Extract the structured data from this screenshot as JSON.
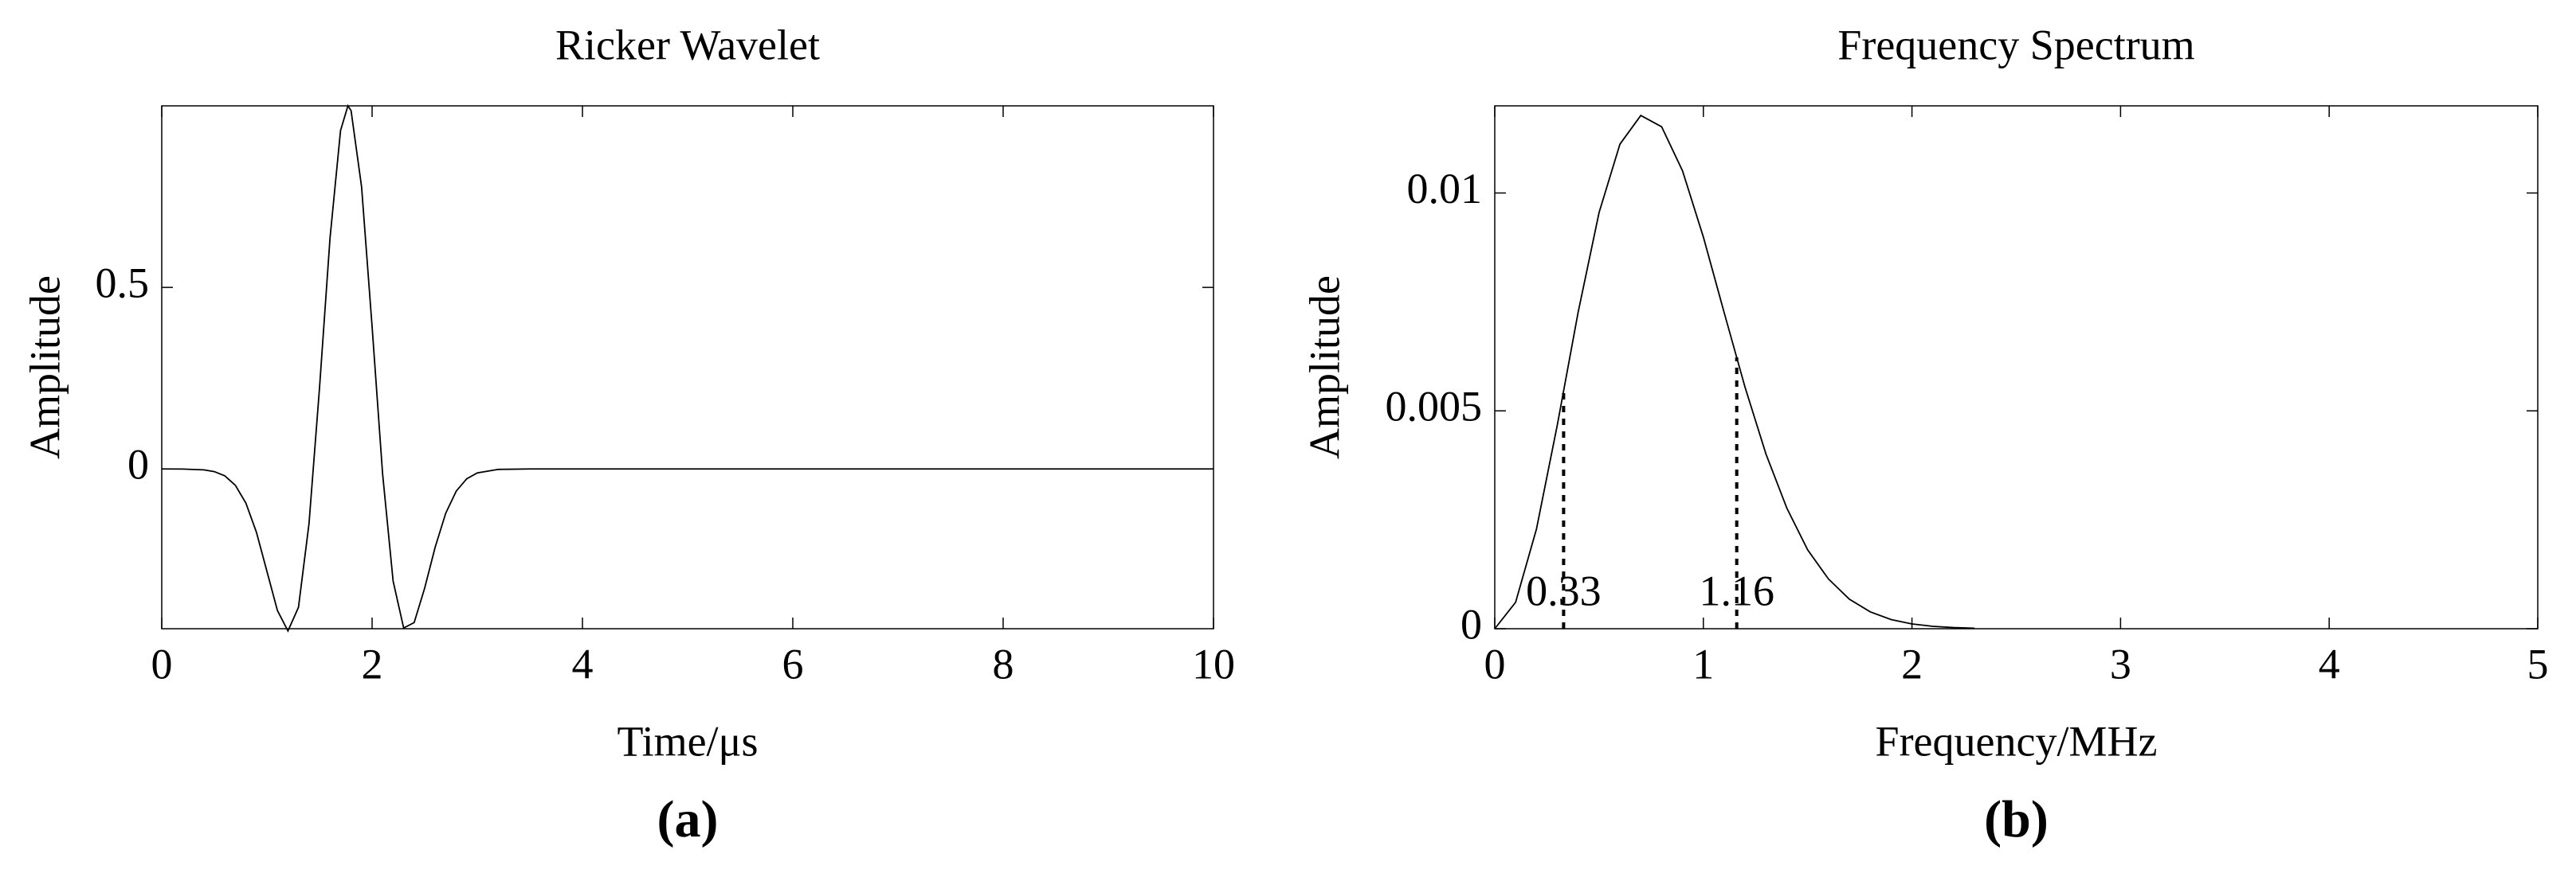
{
  "chart_data": [
    {
      "type": "line",
      "title": "Ricker Wavelet",
      "xlabel": "Time/μs",
      "ylabel": "Amplitude",
      "panel_label": "(a)",
      "x": [
        0,
        0.2,
        0.4,
        0.5,
        0.6,
        0.7,
        0.8,
        0.9,
        1.0,
        1.1,
        1.2,
        1.3,
        1.4,
        1.5,
        1.6,
        1.7,
        1.77,
        1.8,
        1.9,
        2.0,
        2.1,
        2.2,
        2.3,
        2.4,
        2.5,
        2.6,
        2.7,
        2.8,
        2.9,
        3.0,
        3.2,
        3.5,
        10
      ],
      "values": [
        0,
        -0.0002,
        -0.0025,
        -0.0073,
        -0.019,
        -0.045,
        -0.094,
        -0.174,
        -0.282,
        -0.39,
        -0.446,
        -0.381,
        -0.151,
        0.223,
        0.636,
        0.932,
        1,
        0.987,
        0.777,
        0.392,
        -0.014,
        -0.309,
        -0.438,
        -0.423,
        -0.328,
        -0.215,
        -0.122,
        -0.061,
        -0.027,
        -0.011,
        -0.0012,
        0,
        0
      ],
      "color": "#000000",
      "xlim": [
        0,
        10
      ],
      "ylim": [
        -0.44,
        1
      ],
      "xticks": [
        0,
        2,
        4,
        6,
        8,
        10
      ],
      "yticks": [
        0,
        0.5
      ]
    },
    {
      "type": "line",
      "title": "Frequency Spectrum",
      "xlabel": "Frequency/MHz",
      "ylabel": "Amplitude",
      "panel_label": "(b)",
      "x": [
        0,
        0.1,
        0.2,
        0.3,
        0.4,
        0.5,
        0.6,
        0.7,
        0.8,
        0.9,
        1.0,
        1.1,
        1.2,
        1.3,
        1.4,
        1.5,
        1.6,
        1.7,
        1.8,
        1.9,
        2.0,
        2.1,
        2.2,
        2.3
      ],
      "values": [
        0,
        0.000607,
        0.00229,
        0.00468,
        0.00727,
        0.00955,
        0.01112,
        0.01178,
        0.01152,
        0.01051,
        0.00899,
        0.00725,
        0.00554,
        0.00401,
        0.00277,
        0.00181,
        0.00114,
        0.000678,
        0.000387,
        0.000211,
        0.00011,
        5.5e-05,
        2.6e-05,
        1.2e-05
      ],
      "color": "#000000",
      "xlim": [
        0,
        5
      ],
      "ylim": [
        0,
        0.012
      ],
      "xticks": [
        0,
        1,
        2,
        3,
        4,
        5
      ],
      "yticks": [
        0,
        0.005,
        0.01
      ],
      "markers": [
        0.33,
        1.16
      ]
    }
  ]
}
